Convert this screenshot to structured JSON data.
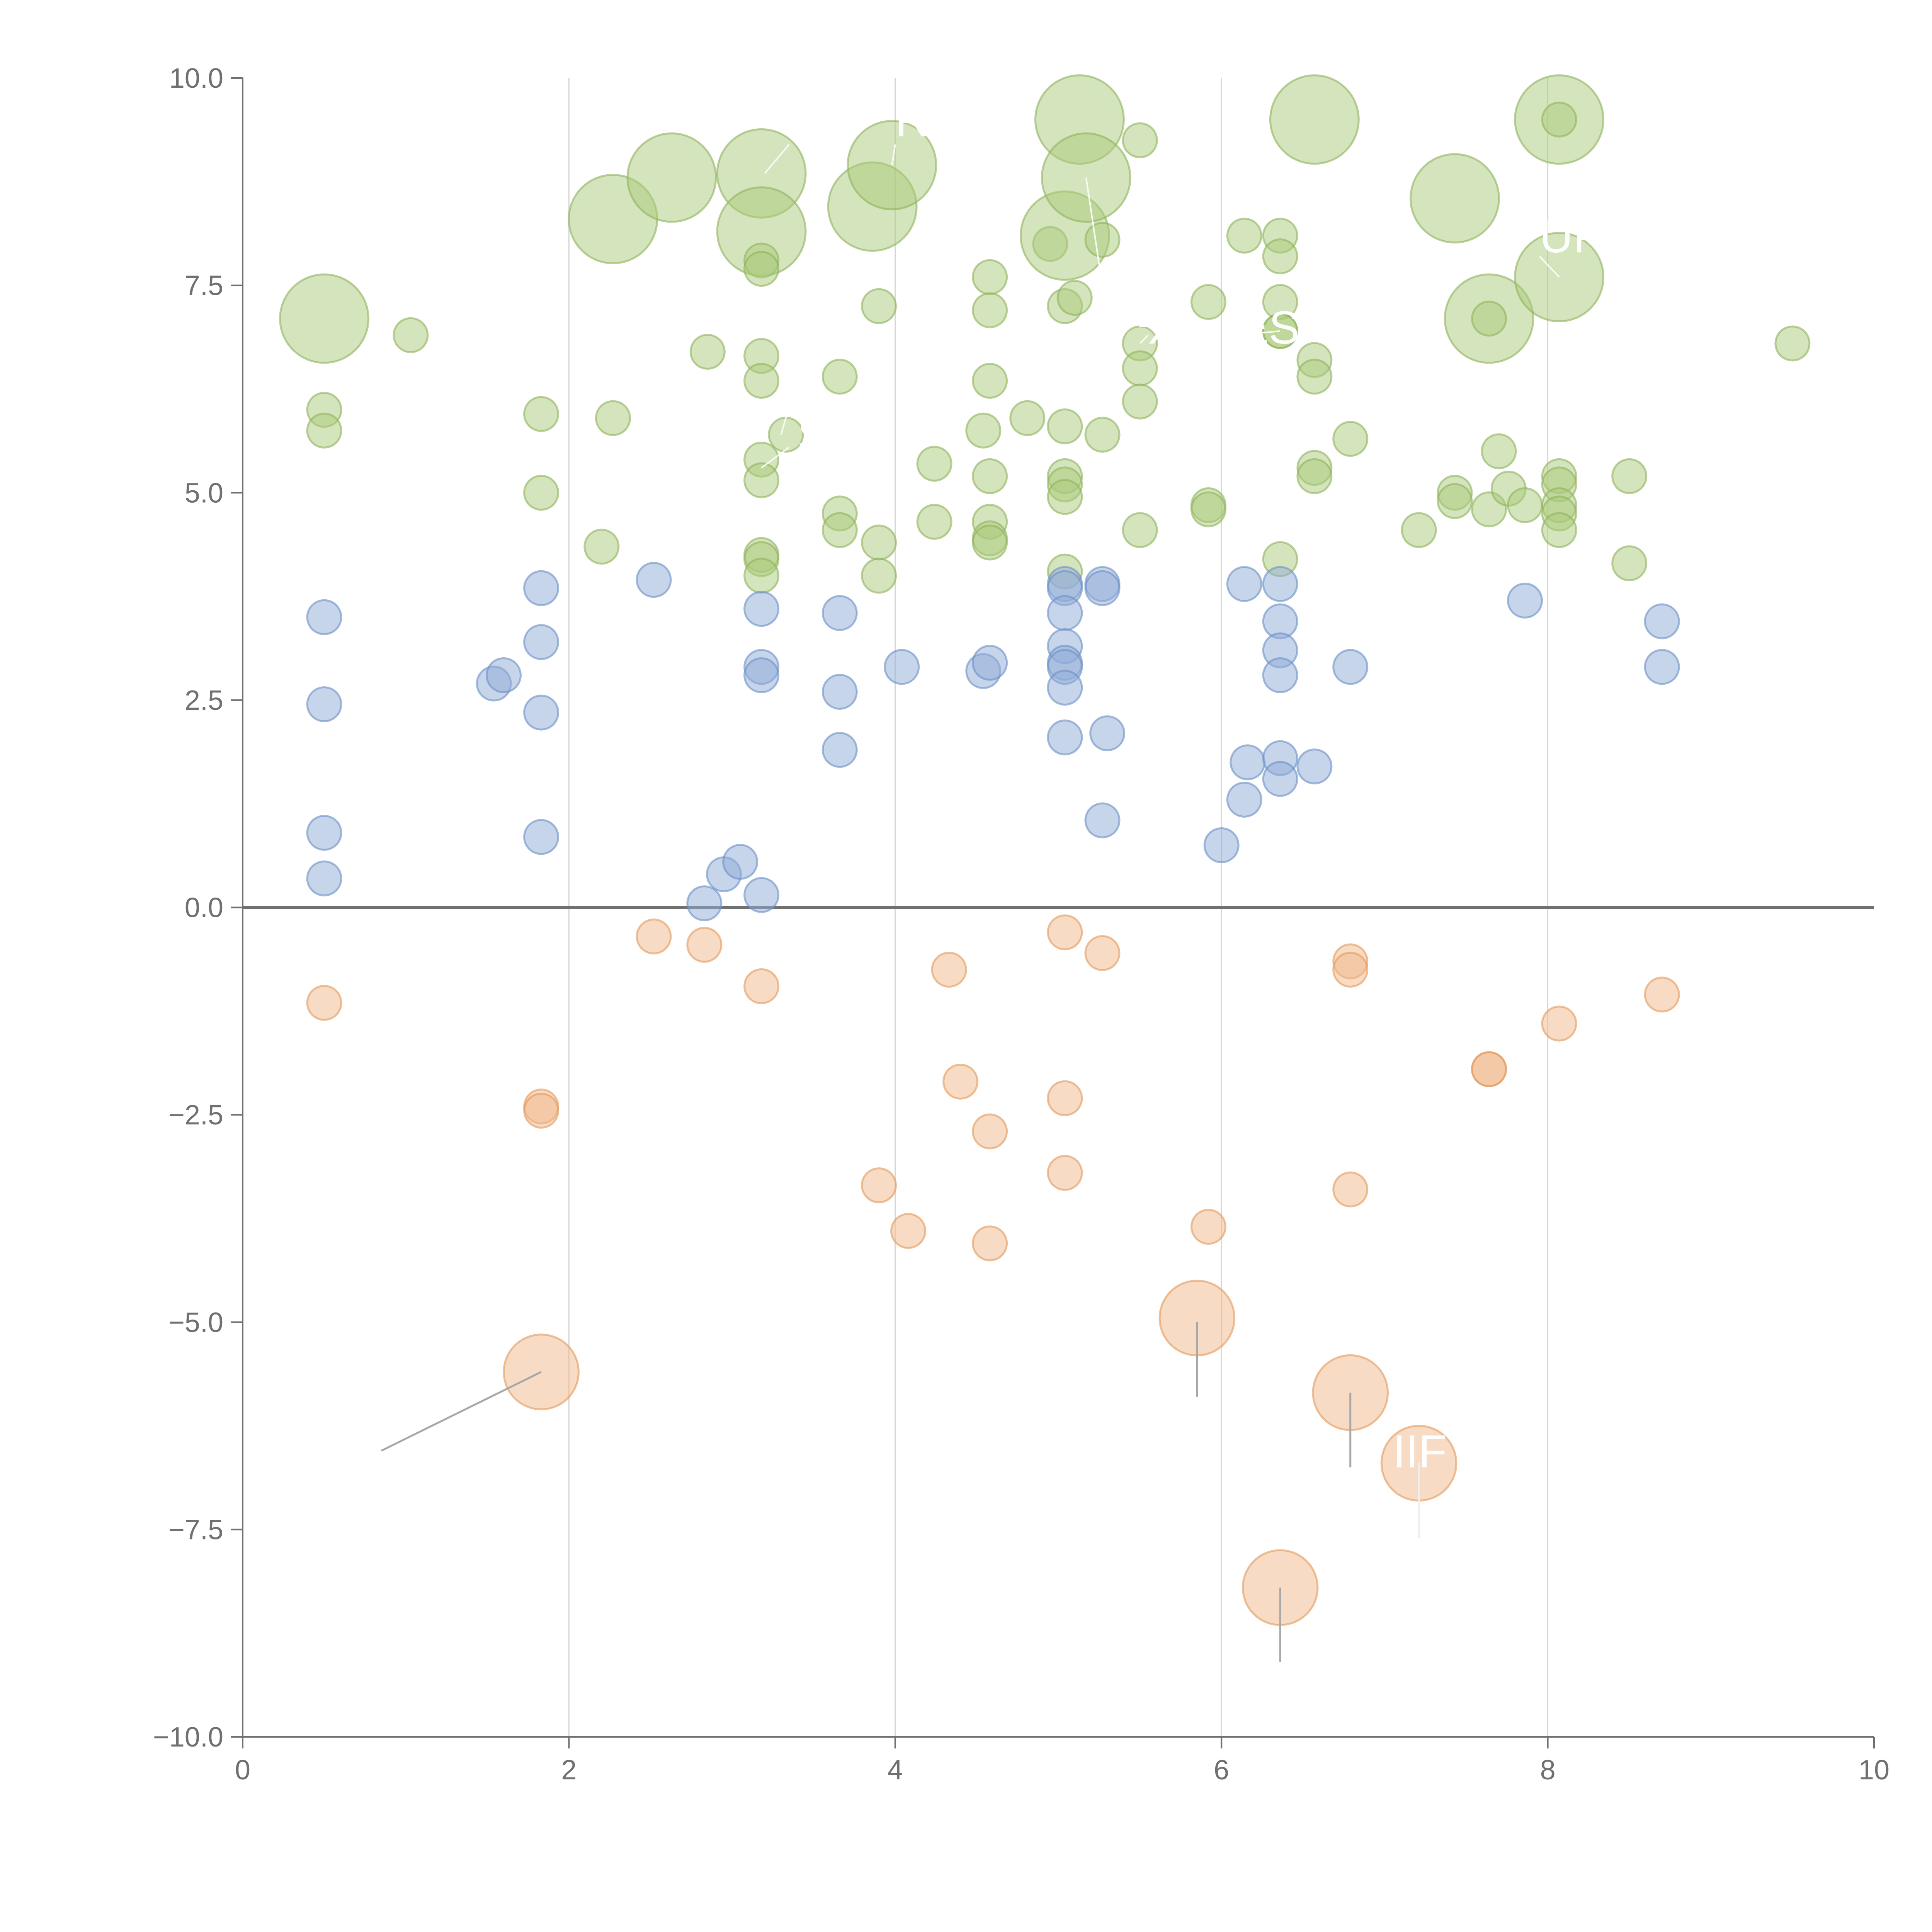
{
  "chart_data": {
    "type": "scatter",
    "title": "",
    "xlabel": "",
    "ylabel": "",
    "xlim": [
      0,
      10
    ],
    "ylim": [
      -10,
      10
    ],
    "x_ticks": [
      "0",
      "2",
      "4",
      "6",
      "8",
      "10"
    ],
    "y_ticks": [
      "−10.0",
      "−7.5",
      "−5.0",
      "−2.5",
      "0.0",
      "2.5",
      "5.0",
      "7.5",
      "10.0"
    ],
    "x_tick_values": [
      0,
      2,
      4,
      6,
      8,
      10
    ],
    "y_tick_values": [
      -10,
      -7.5,
      -5,
      -2.5,
      0,
      2.5,
      5,
      7.5,
      10
    ],
    "vertical_gridlines_at": [
      2,
      4,
      6,
      8
    ],
    "zero_line": true,
    "series": [
      {
        "name": "high",
        "color": "#a9c97a",
        "stroke": "#8fb35c",
        "points": [
          {
            "x": 0.5,
            "y": 7.1,
            "r": 2.6
          },
          {
            "x": 1.03,
            "y": 6.9,
            "r": 1
          },
          {
            "x": 0.5,
            "y": 6.0,
            "r": 1
          },
          {
            "x": 0.5,
            "y": 5.75,
            "r": 1
          },
          {
            "x": 1.83,
            "y": 5.95,
            "r": 1
          },
          {
            "x": 1.83,
            "y": 5.0,
            "r": 1
          },
          {
            "x": 2.2,
            "y": 4.35,
            "r": 1
          },
          {
            "x": 2.27,
            "y": 5.9,
            "r": 1
          },
          {
            "x": 2.27,
            "y": 8.3,
            "r": 2.6
          },
          {
            "x": 2.63,
            "y": 8.8,
            "r": 2.6
          },
          {
            "x": 2.85,
            "y": 6.7,
            "r": 1
          },
          {
            "x": 3.33,
            "y": 5.7,
            "r": 1
          },
          {
            "x": 3.18,
            "y": 8.85,
            "r": 2.6
          },
          {
            "x": 3.18,
            "y": 8.15,
            "r": 2.6
          },
          {
            "x": 3.18,
            "y": 7.8,
            "r": 1
          },
          {
            "x": 3.18,
            "y": 7.7,
            "r": 1
          },
          {
            "x": 3.18,
            "y": 6.65,
            "r": 1
          },
          {
            "x": 3.18,
            "y": 6.35,
            "r": 1
          },
          {
            "x": 3.18,
            "y": 5.4,
            "r": 1
          },
          {
            "x": 3.18,
            "y": 5.15,
            "r": 1
          },
          {
            "x": 3.18,
            "y": 4.25,
            "r": 1
          },
          {
            "x": 3.18,
            "y": 4.2,
            "r": 1
          },
          {
            "x": 3.18,
            "y": 4.0,
            "r": 1
          },
          {
            "x": 3.66,
            "y": 6.4,
            "r": 1
          },
          {
            "x": 3.66,
            "y": 4.75,
            "r": 1
          },
          {
            "x": 3.66,
            "y": 4.55,
            "r": 1
          },
          {
            "x": 3.86,
            "y": 8.45,
            "r": 2.6
          },
          {
            "x": 3.98,
            "y": 8.95,
            "r": 2.6
          },
          {
            "x": 3.9,
            "y": 7.25,
            "r": 1
          },
          {
            "x": 3.9,
            "y": 4.4,
            "r": 1
          },
          {
            "x": 3.9,
            "y": 4.0,
            "r": 1
          },
          {
            "x": 4.24,
            "y": 5.35,
            "r": 1
          },
          {
            "x": 4.24,
            "y": 4.65,
            "r": 1
          },
          {
            "x": 4.54,
            "y": 5.75,
            "r": 1
          },
          {
            "x": 4.58,
            "y": 7.6,
            "r": 1
          },
          {
            "x": 4.58,
            "y": 7.2,
            "r": 1
          },
          {
            "x": 4.58,
            "y": 6.35,
            "r": 1
          },
          {
            "x": 4.58,
            "y": 5.2,
            "r": 1
          },
          {
            "x": 4.58,
            "y": 4.65,
            "r": 1
          },
          {
            "x": 4.58,
            "y": 4.45,
            "r": 1
          },
          {
            "x": 4.58,
            "y": 4.4,
            "r": 1
          },
          {
            "x": 4.81,
            "y": 5.9,
            "r": 1
          },
          {
            "x": 4.95,
            "y": 8.0,
            "r": 1
          },
          {
            "x": 5.04,
            "y": 8.1,
            "r": 2.6
          },
          {
            "x": 5.04,
            "y": 7.25,
            "r": 1
          },
          {
            "x": 5.04,
            "y": 5.8,
            "r": 1
          },
          {
            "x": 5.04,
            "y": 5.2,
            "r": 1
          },
          {
            "x": 5.04,
            "y": 5.1,
            "r": 1
          },
          {
            "x": 5.04,
            "y": 4.95,
            "r": 1
          },
          {
            "x": 5.04,
            "y": 4.05,
            "r": 1
          },
          {
            "x": 5.13,
            "y": 9.5,
            "r": 2.6
          },
          {
            "x": 5.17,
            "y": 8.8,
            "r": 2.6
          },
          {
            "x": 5.1,
            "y": 7.35,
            "r": 1
          },
          {
            "x": 5.27,
            "y": 8.05,
            "r": 1
          },
          {
            "x": 5.27,
            "y": 5.7,
            "r": 1
          },
          {
            "x": 5.5,
            "y": 9.25,
            "r": 1
          },
          {
            "x": 5.5,
            "y": 6.8,
            "r": 1
          },
          {
            "x": 5.5,
            "y": 6.5,
            "r": 1
          },
          {
            "x": 5.5,
            "y": 6.1,
            "r": 1
          },
          {
            "x": 5.5,
            "y": 4.55,
            "r": 1
          },
          {
            "x": 5.92,
            "y": 7.3,
            "r": 1
          },
          {
            "x": 5.92,
            "y": 4.85,
            "r": 1
          },
          {
            "x": 5.92,
            "y": 4.8,
            "r": 1
          },
          {
            "x": 6.14,
            "y": 8.1,
            "r": 1
          },
          {
            "x": 6.36,
            "y": 8.1,
            "r": 1
          },
          {
            "x": 6.36,
            "y": 7.85,
            "r": 1
          },
          {
            "x": 6.36,
            "y": 7.3,
            "r": 1
          },
          {
            "x": 6.36,
            "y": 6.95,
            "r": 1
          },
          {
            "x": 6.36,
            "y": 6.95,
            "r": 1
          },
          {
            "x": 6.36,
            "y": 4.2,
            "r": 1
          },
          {
            "x": 6.57,
            "y": 9.5,
            "r": 2.6
          },
          {
            "x": 6.57,
            "y": 6.6,
            "r": 1
          },
          {
            "x": 6.57,
            "y": 6.4,
            "r": 1
          },
          {
            "x": 6.57,
            "y": 5.3,
            "r": 1
          },
          {
            "x": 6.57,
            "y": 5.2,
            "r": 1
          },
          {
            "x": 6.79,
            "y": 5.65,
            "r": 1
          },
          {
            "x": 7.21,
            "y": 4.55,
            "r": 1
          },
          {
            "x": 7.43,
            "y": 8.55,
            "r": 2.6
          },
          {
            "x": 7.43,
            "y": 5.0,
            "r": 1
          },
          {
            "x": 7.43,
            "y": 4.9,
            "r": 1
          },
          {
            "x": 7.64,
            "y": 7.1,
            "r": 2.6
          },
          {
            "x": 7.64,
            "y": 7.1,
            "r": 1
          },
          {
            "x": 7.64,
            "y": 4.8,
            "r": 1
          },
          {
            "x": 7.7,
            "y": 5.5,
            "r": 1
          },
          {
            "x": 7.76,
            "y": 5.05,
            "r": 1
          },
          {
            "x": 7.86,
            "y": 4.85,
            "r": 1
          },
          {
            "x": 8.07,
            "y": 9.5,
            "r": 2.6
          },
          {
            "x": 8.07,
            "y": 9.5,
            "r": 1
          },
          {
            "x": 8.07,
            "y": 7.6,
            "r": 2.6
          },
          {
            "x": 8.07,
            "y": 5.2,
            "r": 1
          },
          {
            "x": 8.07,
            "y": 5.1,
            "r": 1
          },
          {
            "x": 8.07,
            "y": 4.85,
            "r": 1
          },
          {
            "x": 8.07,
            "y": 4.75,
            "r": 1
          },
          {
            "x": 8.07,
            "y": 4.55,
            "r": 1
          },
          {
            "x": 8.5,
            "y": 5.2,
            "r": 1
          },
          {
            "x": 8.5,
            "y": 4.15,
            "r": 1
          },
          {
            "x": 9.5,
            "y": 6.8,
            "r": 1
          }
        ]
      },
      {
        "name": "mid",
        "color": "#8facd8",
        "stroke": "#6b8fc6",
        "points": [
          {
            "x": 0.5,
            "y": 3.5,
            "r": 1
          },
          {
            "x": 0.5,
            "y": 2.45,
            "r": 1
          },
          {
            "x": 0.5,
            "y": 0.9,
            "r": 1
          },
          {
            "x": 0.5,
            "y": 0.35,
            "r": 1
          },
          {
            "x": 1.54,
            "y": 2.7,
            "r": 1
          },
          {
            "x": 1.6,
            "y": 2.8,
            "r": 1
          },
          {
            "x": 1.83,
            "y": 3.85,
            "r": 1
          },
          {
            "x": 1.83,
            "y": 3.2,
            "r": 1
          },
          {
            "x": 1.83,
            "y": 2.35,
            "r": 1
          },
          {
            "x": 1.83,
            "y": 0.85,
            "r": 1
          },
          {
            "x": 2.52,
            "y": 3.95,
            "r": 1
          },
          {
            "x": 2.83,
            "y": 0.05,
            "r": 1
          },
          {
            "x": 2.95,
            "y": 0.4,
            "r": 1
          },
          {
            "x": 3.05,
            "y": 0.55,
            "r": 1
          },
          {
            "x": 3.18,
            "y": 3.6,
            "r": 1
          },
          {
            "x": 3.18,
            "y": 2.9,
            "r": 1
          },
          {
            "x": 3.18,
            "y": 2.8,
            "r": 1
          },
          {
            "x": 3.18,
            "y": 0.15,
            "r": 1
          },
          {
            "x": 3.66,
            "y": 3.55,
            "r": 1
          },
          {
            "x": 3.66,
            "y": 2.6,
            "r": 1
          },
          {
            "x": 3.66,
            "y": 1.9,
            "r": 1
          },
          {
            "x": 4.04,
            "y": 2.9,
            "r": 1
          },
          {
            "x": 4.54,
            "y": 2.85,
            "r": 1
          },
          {
            "x": 4.58,
            "y": 2.95,
            "r": 1
          },
          {
            "x": 5.04,
            "y": 3.9,
            "r": 1
          },
          {
            "x": 5.04,
            "y": 3.85,
            "r": 1
          },
          {
            "x": 5.04,
            "y": 3.55,
            "r": 1
          },
          {
            "x": 5.04,
            "y": 3.15,
            "r": 1
          },
          {
            "x": 5.04,
            "y": 2.95,
            "r": 1
          },
          {
            "x": 5.04,
            "y": 2.9,
            "r": 1
          },
          {
            "x": 5.04,
            "y": 2.65,
            "r": 1
          },
          {
            "x": 5.04,
            "y": 2.05,
            "r": 1
          },
          {
            "x": 5.27,
            "y": 3.9,
            "r": 1
          },
          {
            "x": 5.27,
            "y": 3.85,
            "r": 1
          },
          {
            "x": 5.3,
            "y": 2.1,
            "r": 1
          },
          {
            "x": 5.27,
            "y": 1.05,
            "r": 1
          },
          {
            "x": 6.0,
            "y": 0.75,
            "r": 1
          },
          {
            "x": 6.14,
            "y": 3.9,
            "r": 1
          },
          {
            "x": 6.16,
            "y": 1.75,
            "r": 1
          },
          {
            "x": 6.14,
            "y": 1.3,
            "r": 1
          },
          {
            "x": 6.36,
            "y": 3.9,
            "r": 1
          },
          {
            "x": 6.36,
            "y": 3.45,
            "r": 1
          },
          {
            "x": 6.36,
            "y": 3.1,
            "r": 1
          },
          {
            "x": 6.36,
            "y": 2.8,
            "r": 1
          },
          {
            "x": 6.36,
            "y": 1.8,
            "r": 1
          },
          {
            "x": 6.36,
            "y": 1.55,
            "r": 1
          },
          {
            "x": 6.57,
            "y": 1.7,
            "r": 1
          },
          {
            "x": 6.79,
            "y": 2.9,
            "r": 1
          },
          {
            "x": 7.86,
            "y": 3.7,
            "r": 1
          },
          {
            "x": 8.7,
            "y": 3.45,
            "r": 1
          },
          {
            "x": 8.7,
            "y": 2.9,
            "r": 1
          }
        ]
      },
      {
        "name": "low",
        "color": "#efb789",
        "stroke": "#e39a5c",
        "points": [
          {
            "x": 0.5,
            "y": -1.15,
            "r": 1
          },
          {
            "x": 1.83,
            "y": -2.4,
            "r": 1
          },
          {
            "x": 1.83,
            "y": -2.45,
            "r": 1
          },
          {
            "x": 1.83,
            "y": -5.6,
            "r": 2.2
          },
          {
            "x": 2.52,
            "y": -0.35,
            "r": 1
          },
          {
            "x": 2.83,
            "y": -0.45,
            "r": 1
          },
          {
            "x": 3.18,
            "y": -0.95,
            "r": 1
          },
          {
            "x": 3.9,
            "y": -3.35,
            "r": 1
          },
          {
            "x": 4.08,
            "y": -3.9,
            "r": 1
          },
          {
            "x": 4.33,
            "y": -0.75,
            "r": 1
          },
          {
            "x": 4.4,
            "y": -2.1,
            "r": 1
          },
          {
            "x": 4.58,
            "y": -2.7,
            "r": 1
          },
          {
            "x": 4.58,
            "y": -4.05,
            "r": 1
          },
          {
            "x": 5.04,
            "y": -0.3,
            "r": 1
          },
          {
            "x": 5.04,
            "y": -2.3,
            "r": 1
          },
          {
            "x": 5.04,
            "y": -3.2,
            "r": 1
          },
          {
            "x": 5.27,
            "y": -0.55,
            "r": 1
          },
          {
            "x": 5.85,
            "y": -4.95,
            "r": 2.2
          },
          {
            "x": 5.92,
            "y": -3.85,
            "r": 1
          },
          {
            "x": 6.36,
            "y": -8.2,
            "r": 2.2
          },
          {
            "x": 6.79,
            "y": -0.65,
            "r": 1
          },
          {
            "x": 6.79,
            "y": -0.75,
            "r": 1
          },
          {
            "x": 6.79,
            "y": -3.4,
            "r": 1
          },
          {
            "x": 6.79,
            "y": -5.85,
            "r": 2.2
          },
          {
            "x": 7.21,
            "y": -6.7,
            "r": 2.2
          },
          {
            "x": 7.64,
            "y": -1.95,
            "r": 1
          },
          {
            "x": 7.64,
            "y": -1.95,
            "r": 1
          },
          {
            "x": 8.07,
            "y": -1.4,
            "r": 1
          },
          {
            "x": 8.7,
            "y": -1.05,
            "r": 1
          }
        ]
      }
    ],
    "annotations": [
      {
        "text": "STO",
        "x": 3.4,
        "y": 5.5,
        "line": [
          [
            3.18,
            5.3
          ],
          [
            3.35,
            5.55
          ]
        ]
      },
      {
        "text": "RI",
        "x": 3.55,
        "y": 7.5,
        "line": [
          [
            3.3,
            5.7
          ],
          [
            3.55,
            7.4
          ]
        ]
      },
      {
        "text": "O",
        "x": 3.35,
        "y": 9.3,
        "line": [
          [
            3.2,
            8.85
          ],
          [
            3.35,
            9.2
          ]
        ]
      },
      {
        "text": "RT",
        "x": 4.0,
        "y": 9.3,
        "line": [
          [
            3.98,
            8.95
          ],
          [
            4.0,
            9.2
          ]
        ]
      },
      {
        "text": "TL",
        "x": 5.3,
        "y": 7.0,
        "line": [
          [
            5.17,
            8.8
          ],
          [
            5.3,
            7.1
          ]
        ]
      },
      {
        "text": "X",
        "x": 5.55,
        "y": 6.8,
        "line": [
          [
            5.5,
            6.8
          ],
          [
            5.55,
            6.9
          ]
        ]
      },
      {
        "text": "ES",
        "x": 6.1,
        "y": 6.8,
        "line": [
          [
            6.36,
            6.95
          ],
          [
            6.1,
            6.9
          ]
        ]
      },
      {
        "text": "UP",
        "x": 7.95,
        "y": 7.9,
        "line": [
          [
            8.07,
            7.6
          ],
          [
            7.95,
            7.85
          ]
        ]
      },
      {
        "text": "IIF",
        "x": 7.05,
        "y": -6.75,
        "line": [
          [
            7.21,
            -6.7
          ],
          [
            7.21,
            -7.6
          ]
        ]
      }
    ],
    "leader_lines_low": [
      {
        "from": [
          1.83,
          -5.6
        ],
        "to": [
          0.85,
          -6.55
        ]
      },
      {
        "from": [
          5.85,
          -5.0
        ],
        "to": [
          5.85,
          -5.9
        ]
      },
      {
        "from": [
          6.79,
          -5.85
        ],
        "to": [
          6.79,
          -6.75
        ]
      },
      {
        "from": [
          7.21,
          -6.7
        ],
        "to": [
          7.21,
          -7.6
        ]
      },
      {
        "from": [
          6.36,
          -8.2
        ],
        "to": [
          6.36,
          -9.1
        ]
      }
    ]
  }
}
